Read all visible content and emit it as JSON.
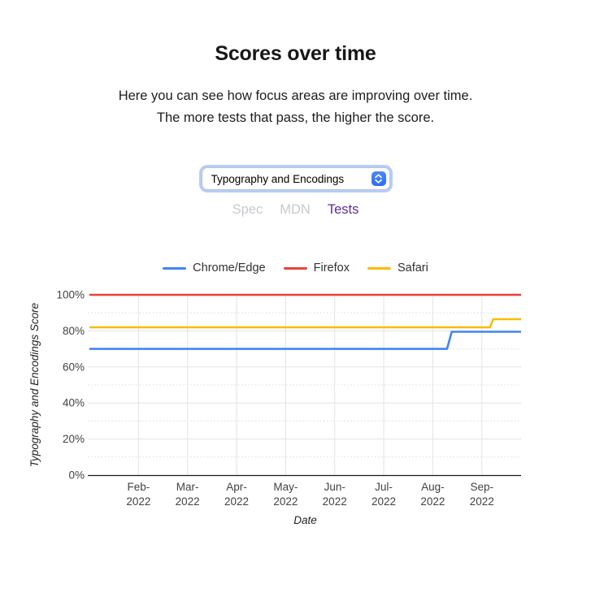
{
  "header": {
    "title": "Scores over time",
    "description": "Here you can see how focus areas are improving over time. The more tests that pass, the higher the score."
  },
  "controls": {
    "focus_area_select": {
      "selected_option": "Typography and Encodings"
    },
    "tabs": [
      {
        "label": "Spec",
        "active": false
      },
      {
        "label": "MDN",
        "active": false
      },
      {
        "label": "Tests",
        "active": true
      }
    ],
    "colors": {
      "tab_active": "#5b2d90",
      "tab_inactive": "#c7c9cf",
      "select_focus_ring": "#b5cdf9",
      "select_stepper": "#3478f6"
    }
  },
  "chart_data": {
    "type": "line",
    "title": "",
    "xlabel": "Date",
    "ylabel": "Typography and Encodings Score",
    "ylim": [
      0,
      100
    ],
    "grid": true,
    "grid_step": 10,
    "ytick_label_step": 20,
    "legend_position": "top",
    "x_range": [
      "2022-01-01",
      "2022-09-25"
    ],
    "xticks": [
      {
        "date": "2022-02-01",
        "label": [
          "Feb-",
          "2022"
        ]
      },
      {
        "date": "2022-03-01",
        "label": [
          "Mar-",
          "2022"
        ]
      },
      {
        "date": "2022-04-01",
        "label": [
          "Apr-",
          "2022"
        ]
      },
      {
        "date": "2022-05-01",
        "label": [
          "May-",
          "2022"
        ]
      },
      {
        "date": "2022-06-01",
        "label": [
          "Jun-",
          "2022"
        ]
      },
      {
        "date": "2022-07-01",
        "label": [
          "Jul-",
          "2022"
        ]
      },
      {
        "date": "2022-08-01",
        "label": [
          "Aug-",
          "2022"
        ]
      },
      {
        "date": "2022-09-01",
        "label": [
          "Sep-",
          "2022"
        ]
      }
    ],
    "yticks": [
      {
        "value": 0,
        "label": "0%"
      },
      {
        "value": 20,
        "label": "20%"
      },
      {
        "value": 40,
        "label": "40%"
      },
      {
        "value": 60,
        "label": "60%"
      },
      {
        "value": 80,
        "label": "80%"
      },
      {
        "value": 100,
        "label": "100%"
      }
    ],
    "series": [
      {
        "name": "Chrome/Edge",
        "color": "#4285f4",
        "points": [
          [
            "2022-01-01",
            70
          ],
          [
            "2022-08-10",
            70
          ],
          [
            "2022-08-13",
            79.5
          ],
          [
            "2022-09-25",
            79.5
          ]
        ]
      },
      {
        "name": "Firefox",
        "color": "#ea4335",
        "points": [
          [
            "2022-01-01",
            100
          ],
          [
            "2022-09-25",
            100
          ]
        ]
      },
      {
        "name": "Safari",
        "color": "#fbbc04",
        "points": [
          [
            "2022-01-01",
            82
          ],
          [
            "2022-09-06",
            82
          ],
          [
            "2022-09-08",
            86.5
          ],
          [
            "2022-09-25",
            86.5
          ]
        ]
      }
    ]
  }
}
